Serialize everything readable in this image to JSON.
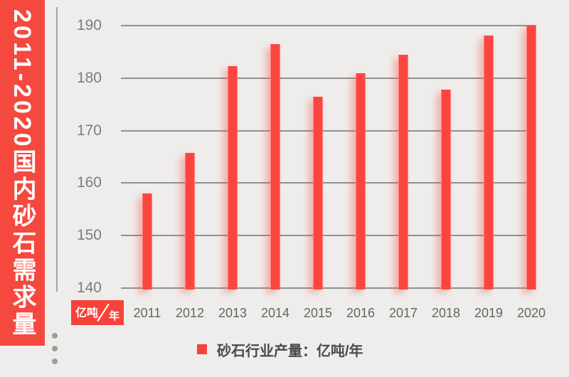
{
  "page": {
    "background": "#efedeb"
  },
  "banner": {
    "title": "2011-2020国内砂石需求量",
    "background": "#f5483f",
    "text_color": "#ffffff"
  },
  "unit_badge": {
    "numerator": "亿吨",
    "slash": "/",
    "denominator": "年",
    "background": "#f5423a"
  },
  "legend": {
    "marker_color": "#f5423b",
    "label": "砂石行业产量：亿吨/年"
  },
  "chart_data": {
    "type": "bar",
    "title": "2011-2020国内砂石需求量",
    "categories": [
      "2011",
      "2012",
      "2013",
      "2014",
      "2015",
      "2016",
      "2017",
      "2018",
      "2019",
      "2020"
    ],
    "values": [
      158,
      165.8,
      182.3,
      186.5,
      176.4,
      180.9,
      184.5,
      177.8,
      188.1,
      190
    ],
    "ylabel": "亿吨/年",
    "ylim": [
      140,
      190
    ],
    "yticks": [
      190,
      180,
      170,
      160,
      150,
      140
    ],
    "bar_color": "#fb4540",
    "grid": true,
    "gridline_color": "#909090",
    "legend_position": "bottom",
    "legend_entries": [
      "砂石行业产量：亿吨/年"
    ]
  }
}
